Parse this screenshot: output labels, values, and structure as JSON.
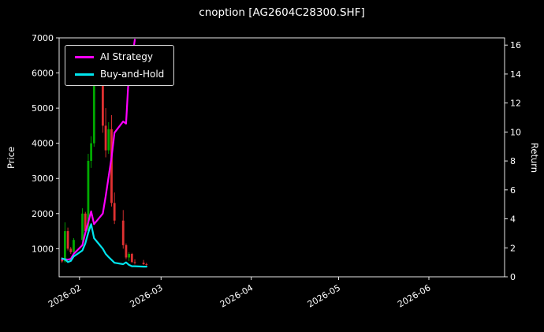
{
  "chart_data": {
    "type": "candlestick+line",
    "title": "cnoption [AG2604C28300.SHF]",
    "xlabel": "",
    "ylabel_left": "Price",
    "ylabel_right": "Return",
    "grid": false,
    "legend_position": "upper left",
    "x_range": [
      "2026-01-25",
      "2026-06-27"
    ],
    "price_ylim": [
      200,
      7000
    ],
    "return_ylim": [
      0,
      16.5
    ],
    "colors": {
      "background": "#000000",
      "text": "#ffffff",
      "spine": "#ffffff",
      "candle_up": "#00aa00",
      "candle_down": "#e03131",
      "ai_strategy": "#ff00ff",
      "buy_and_hold": "#00e5ee"
    },
    "price_ticks": [
      {
        "value": 1000,
        "label": "1000"
      },
      {
        "value": 2000,
        "label": "2000"
      },
      {
        "value": 3000,
        "label": "3000"
      },
      {
        "value": 4000,
        "label": "4000"
      },
      {
        "value": 5000,
        "label": "5000"
      },
      {
        "value": 6000,
        "label": "6000"
      },
      {
        "value": 7000,
        "label": "7000"
      }
    ],
    "return_ticks": [
      {
        "value": 0,
        "label": "0"
      },
      {
        "value": 2,
        "label": "2"
      },
      {
        "value": 4,
        "label": "4"
      },
      {
        "value": 6,
        "label": "6"
      },
      {
        "value": 8,
        "label": "8"
      },
      {
        "value": 10,
        "label": "10"
      },
      {
        "value": 12,
        "label": "12"
      },
      {
        "value": 14,
        "label": "14"
      },
      {
        "value": 16,
        "label": "16"
      }
    ],
    "x_ticks": [
      {
        "date": "2026-02-01",
        "label": "2026-02"
      },
      {
        "date": "2026-03-01",
        "label": "2026-03"
      },
      {
        "date": "2026-04-01",
        "label": "2026-04"
      },
      {
        "date": "2026-05-01",
        "label": "2026-05"
      },
      {
        "date": "2026-06-01",
        "label": "2026-06"
      }
    ],
    "candles": {
      "dates": [
        "2026-01-26",
        "2026-01-27",
        "2026-01-28",
        "2026-01-29",
        "2026-01-30",
        "2026-02-02",
        "2026-02-03",
        "2026-02-04",
        "2026-02-05",
        "2026-02-06",
        "2026-02-09",
        "2026-02-10",
        "2026-02-11",
        "2026-02-12",
        "2026-02-13",
        "2026-02-16",
        "2026-02-17",
        "2026-02-18",
        "2026-02-19",
        "2026-02-20",
        "2026-02-23",
        "2026-02-24"
      ],
      "open": [
        700,
        640,
        1500,
        1000,
        900,
        1250,
        2000,
        1500,
        3500,
        4000,
        5800,
        4500,
        3800,
        4400,
        2300,
        1800,
        1100,
        750,
        850,
        620,
        600,
        560
      ],
      "high": [
        760,
        1750,
        1600,
        1050,
        1300,
        2150,
        2050,
        3700,
        4200,
        5900,
        6600,
        5000,
        4600,
        4800,
        2600,
        2100,
        1150,
        900,
        880,
        700,
        680,
        600
      ],
      "low": [
        600,
        600,
        950,
        850,
        880,
        1200,
        1400,
        1450,
        3300,
        3900,
        4300,
        3600,
        3700,
        2200,
        1700,
        1000,
        700,
        650,
        600,
        550,
        540,
        500
      ],
      "close": [
        640,
        1500,
        1000,
        900,
        1250,
        2000,
        1500,
        3500,
        4000,
        5800,
        4500,
        3800,
        4400,
        2300,
        1800,
        1100,
        750,
        850,
        620,
        600,
        560,
        540
      ]
    },
    "series": [
      {
        "name": "AI Strategy",
        "color": "#ff00ff",
        "axis": "price",
        "dates": [
          "2026-01-26",
          "2026-01-27",
          "2026-01-28",
          "2026-01-29",
          "2026-01-30",
          "2026-02-02",
          "2026-02-03",
          "2026-02-04",
          "2026-02-05",
          "2026-02-06",
          "2026-02-09",
          "2026-02-10",
          "2026-02-11",
          "2026-02-12",
          "2026-02-13",
          "2026-02-16",
          "2026-02-17",
          "2026-02-18",
          "2026-02-19",
          "2026-02-20"
        ],
        "values": [
          700,
          700,
          690,
          710,
          850,
          1100,
          1450,
          1750,
          2060,
          1700,
          2000,
          2500,
          3050,
          3600,
          4300,
          4620,
          4560,
          6050,
          6350,
          6950
        ]
      },
      {
        "name": "Buy-and-Hold",
        "color": "#00e5ee",
        "axis": "price",
        "dates": [
          "2026-01-26",
          "2026-01-27",
          "2026-01-28",
          "2026-01-29",
          "2026-01-30",
          "2026-02-02",
          "2026-02-03",
          "2026-02-04",
          "2026-02-05",
          "2026-02-06",
          "2026-02-09",
          "2026-02-10",
          "2026-02-11",
          "2026-02-12",
          "2026-02-13",
          "2026-02-16",
          "2026-02-17",
          "2026-02-18",
          "2026-02-19",
          "2026-02-20",
          "2026-02-23",
          "2026-02-24"
        ],
        "values": [
          720,
          700,
          620,
          650,
          780,
          950,
          1150,
          1450,
          1700,
          1300,
          1000,
          850,
          760,
          680,
          600,
          560,
          610,
          540,
          500,
          500,
          490,
          490
        ]
      }
    ]
  }
}
